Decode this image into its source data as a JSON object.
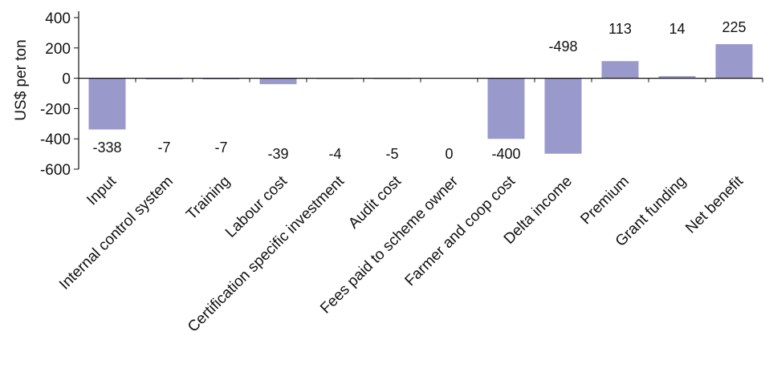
{
  "chart_data": {
    "type": "bar",
    "title": "",
    "xlabel": "",
    "ylabel": "US$ per ton",
    "ylim": [
      -600,
      400
    ],
    "yticks": [
      400,
      200,
      0,
      -200,
      -400,
      -600
    ],
    "grid": false,
    "legend": "none",
    "bar_color": "#9999cc",
    "categories": [
      "Input",
      "Internal control system",
      "Training",
      "Labour cost",
      "Certification specific investment",
      "Audit cost",
      "Fees paid to scheme owner",
      "Farmer and coop cost",
      "Delta income",
      "Premium",
      "Grant funding",
      "Net benefit"
    ],
    "values": [
      -338,
      -7,
      -7,
      -39,
      -4,
      -5,
      0,
      -400,
      -498,
      113,
      14,
      225
    ],
    "data_labels": [
      "-338",
      "-7",
      "-7",
      "-39",
      "-4",
      "-5",
      "0",
      "-400",
      "-498",
      "113",
      "14",
      "225"
    ]
  }
}
